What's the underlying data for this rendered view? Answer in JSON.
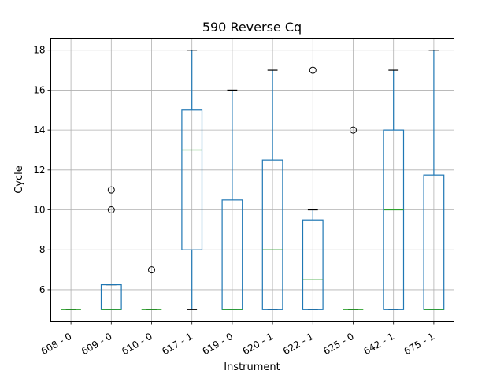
{
  "chart_data": {
    "type": "box",
    "title": "590 Reverse Cq",
    "xlabel": "Instrument",
    "ylabel": "Cycle",
    "ylim": [
      4.4,
      18.6
    ],
    "yticks": [
      6,
      8,
      10,
      12,
      14,
      16,
      18
    ],
    "grid": true,
    "colors": {
      "box": "#1f77b4",
      "median": "#2ca02c",
      "grid": "#b0b0b0",
      "flier": "#000000"
    },
    "categories": [
      "608 - 0",
      "609 - 0",
      "610 - 0",
      "617 - 1",
      "619 - 0",
      "620 - 1",
      "622 - 1",
      "625 - 0",
      "642 - 1",
      "675 - 1"
    ],
    "boxes": [
      {
        "category": "608 - 0",
        "whisker_low": 5,
        "q1": 5,
        "median": 5,
        "q3": 5,
        "whisker_high": 5,
        "outliers": []
      },
      {
        "category": "609 - 0",
        "whisker_low": 5,
        "q1": 5,
        "median": 5,
        "q3": 6.25,
        "whisker_high": 6.25,
        "outliers": [
          10,
          11
        ]
      },
      {
        "category": "610 - 0",
        "whisker_low": 5,
        "q1": 5,
        "median": 5,
        "q3": 5,
        "whisker_high": 5,
        "outliers": [
          7
        ]
      },
      {
        "category": "617 - 1",
        "whisker_low": 5,
        "q1": 8,
        "median": 13,
        "q3": 15,
        "whisker_high": 18,
        "outliers": []
      },
      {
        "category": "619 - 0",
        "whisker_low": 5,
        "q1": 5,
        "median": 5,
        "q3": 10.5,
        "whisker_high": 16,
        "outliers": []
      },
      {
        "category": "620 - 1",
        "whisker_low": 5,
        "q1": 5,
        "median": 8,
        "q3": 12.5,
        "whisker_high": 17,
        "outliers": []
      },
      {
        "category": "622 - 1",
        "whisker_low": 5,
        "q1": 5,
        "median": 6.5,
        "q3": 9.5,
        "whisker_high": 10,
        "outliers": [
          17
        ]
      },
      {
        "category": "625 - 0",
        "whisker_low": 5,
        "q1": 5,
        "median": 5,
        "q3": 5,
        "whisker_high": 5,
        "outliers": [
          14
        ]
      },
      {
        "category": "642 - 1",
        "whisker_low": 5,
        "q1": 5,
        "median": 10,
        "q3": 14,
        "whisker_high": 17,
        "outliers": []
      },
      {
        "category": "675 - 1",
        "whisker_low": 5,
        "q1": 5,
        "median": 5,
        "q3": 11.75,
        "whisker_high": 18,
        "outliers": []
      }
    ]
  }
}
